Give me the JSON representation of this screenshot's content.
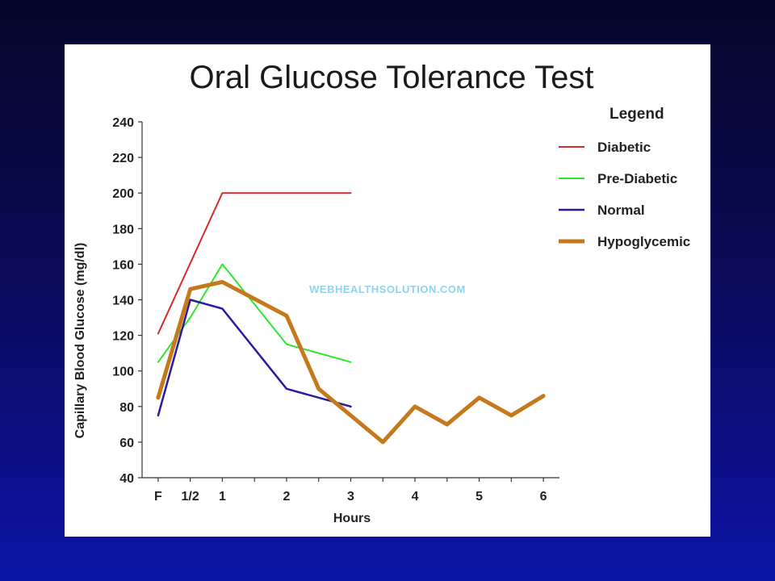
{
  "chart_data": {
    "type": "line",
    "title": "Oral Glucose Tolerance Test",
    "xlabel": "Hours",
    "ylabel": "Capillary Blood Glucose (mg/dl)",
    "x_ticks": [
      {
        "label": "F",
        "value": 0
      },
      {
        "label": "1/2",
        "value": 0.5
      },
      {
        "label": "1",
        "value": 1
      },
      {
        "label": "2",
        "value": 2
      },
      {
        "label": "3",
        "value": 3
      },
      {
        "label": "4",
        "value": 4
      },
      {
        "label": "5",
        "value": 5
      },
      {
        "label": "6",
        "value": 6
      }
    ],
    "xlim": [
      -0.25,
      6.25
    ],
    "ylim": [
      40,
      240
    ],
    "y_ticks": [
      40,
      60,
      80,
      100,
      120,
      140,
      160,
      180,
      200,
      220,
      240
    ],
    "legend_title": "Legend",
    "legend_position": "right",
    "series": [
      {
        "name": "Diabetic",
        "color": "#d62a2a",
        "width": 2,
        "points": [
          [
            0,
            121
          ],
          [
            1,
            200
          ],
          [
            3,
            200
          ]
        ]
      },
      {
        "name": "Pre-Diabetic",
        "color": "#2ee62e",
        "width": 2,
        "points": [
          [
            0,
            105
          ],
          [
            0.5,
            130
          ],
          [
            1,
            160
          ],
          [
            2,
            115
          ],
          [
            3,
            105
          ]
        ]
      },
      {
        "name": "Normal",
        "color": "#2a1aa0",
        "width": 2.5,
        "points": [
          [
            0,
            75
          ],
          [
            0.5,
            140
          ],
          [
            1,
            135
          ],
          [
            2,
            90
          ],
          [
            3,
            80
          ]
        ]
      },
      {
        "name": "Hypoglycemic",
        "color": "#c47a1c",
        "width": 5,
        "points": [
          [
            0,
            85
          ],
          [
            0.5,
            146
          ],
          [
            1,
            150
          ],
          [
            2,
            131
          ],
          [
            2.5,
            90
          ],
          [
            3.5,
            60
          ],
          [
            4,
            80
          ],
          [
            4.5,
            70
          ],
          [
            5,
            85
          ],
          [
            5.5,
            75
          ],
          [
            6,
            86
          ]
        ]
      }
    ]
  },
  "watermark": "WEBHEALTHSOLUTION.COM"
}
